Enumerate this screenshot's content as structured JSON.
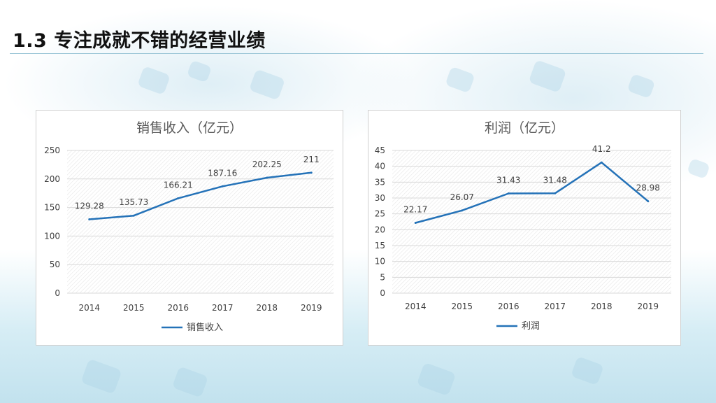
{
  "page": {
    "title": "1.3 专注成就不错的经营业绩"
  },
  "colors": {
    "line": "#2472b8",
    "title_text": "#595959",
    "axis_text": "#404040",
    "grid": "#d9d9d9"
  },
  "chart_data": [
    {
      "type": "line",
      "title": "销售收入（亿元）",
      "categories": [
        "2014",
        "2015",
        "2016",
        "2017",
        "2018",
        "2019"
      ],
      "series": [
        {
          "name": "销售收入",
          "values": [
            129.28,
            135.73,
            166.21,
            187.16,
            202.25,
            211
          ]
        }
      ],
      "data_labels": [
        "129.28",
        "135.73",
        "166.21",
        "187.16",
        "202.25",
        "211"
      ],
      "ylim": [
        0,
        250
      ],
      "yticks": [
        "0",
        "50",
        "100",
        "150",
        "200",
        "250"
      ],
      "grid": true,
      "legend": "bottom"
    },
    {
      "type": "line",
      "title": "利润（亿元）",
      "categories": [
        "2014",
        "2015",
        "2016",
        "2017",
        "2018",
        "2019"
      ],
      "series": [
        {
          "name": "利润",
          "values": [
            22.17,
            26.07,
            31.43,
            31.48,
            41.2,
            28.98
          ]
        }
      ],
      "data_labels": [
        "22.17",
        "26.07",
        "31.43",
        "31.48",
        "41.2",
        "28.98"
      ],
      "ylim": [
        0,
        45
      ],
      "yticks": [
        "0",
        "5",
        "10",
        "15",
        "20",
        "25",
        "30",
        "35",
        "40",
        "45"
      ],
      "grid": true,
      "legend": "bottom"
    }
  ]
}
